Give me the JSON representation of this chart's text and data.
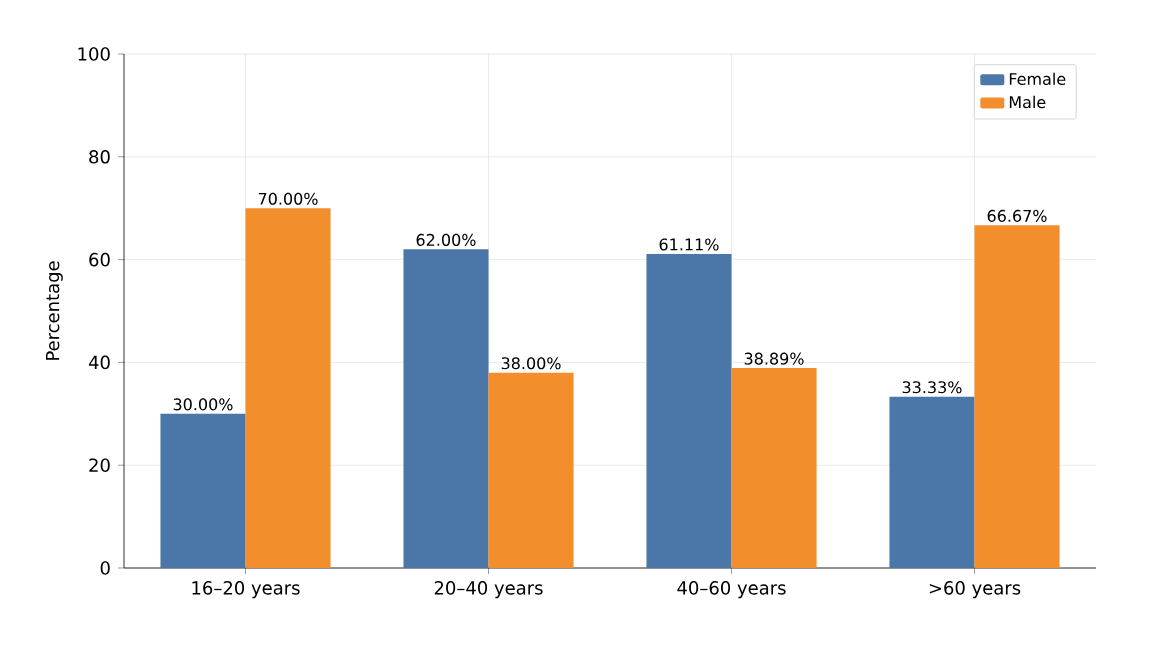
{
  "chart_data": {
    "type": "bar",
    "ylabel": "Percentage",
    "categories": [
      "16–20 years",
      "20–40 years",
      "40–60 years",
      ">60 years"
    ],
    "series": [
      {
        "name": "Female",
        "color": "#4a76a8",
        "values": [
          30.0,
          62.0,
          61.11,
          33.33
        ],
        "value_labels": [
          "30.00%",
          "62.00%",
          "61.11%",
          "33.33%"
        ]
      },
      {
        "name": "Male",
        "color": "#f28e2b",
        "values": [
          70.0,
          38.0,
          38.89,
          66.67
        ],
        "value_labels": [
          "70.00%",
          "38.00%",
          "38.89%",
          "66.67%"
        ]
      }
    ],
    "ylim": [
      0,
      100
    ],
    "yticks": [
      0,
      20,
      40,
      60,
      80,
      100
    ],
    "grid": true,
    "legend": "top right"
  }
}
